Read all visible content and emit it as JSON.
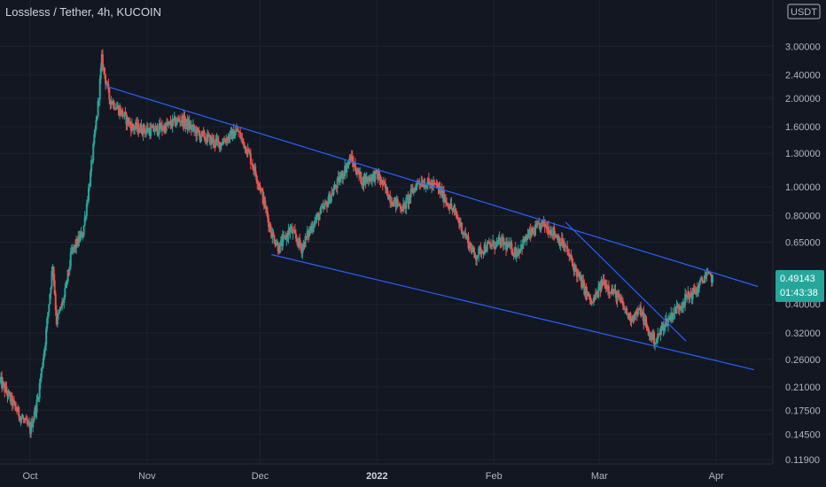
{
  "header": {
    "title": "Lossless / Tether, 4h, KUCOIN"
  },
  "chart_data": {
    "type": "candlestick",
    "symbol": "Lossless / Tether",
    "interval": "4h",
    "exchange": "KUCOIN",
    "currency": "USDT",
    "y_scale": "log",
    "y_range": [
      0.115,
      3.5
    ],
    "y_ticks": [
      "3.00000",
      "2.40000",
      "2.00000",
      "1.60000",
      "1.30000",
      "1.00000",
      "0.80000",
      "0.65000",
      "0.40000",
      "0.32000",
      "0.26000",
      "0.21000",
      "0.17500",
      "0.14500",
      "0.11900"
    ],
    "x_range": [
      "2021-09-23",
      "2022-04-16"
    ],
    "x_ticks": [
      {
        "label": "Oct",
        "date": "2021-10-01"
      },
      {
        "label": "Nov",
        "date": "2021-11-01"
      },
      {
        "label": "Dec",
        "date": "2021-12-01"
      },
      {
        "label": "2022",
        "date": "2022-01-01",
        "bold": true
      },
      {
        "label": "Feb",
        "date": "2022-02-01"
      },
      {
        "label": "Mar",
        "date": "2022-03-01"
      },
      {
        "label": "Apr",
        "date": "2022-04-01"
      }
    ],
    "current_price": "0.49143",
    "countdown": "01:43:38",
    "price_path": [
      [
        "2021-09-23",
        0.22
      ],
      [
        "2021-09-28",
        0.17
      ],
      [
        "2021-10-01",
        0.15
      ],
      [
        "2021-10-03",
        0.19
      ],
      [
        "2021-10-05",
        0.3
      ],
      [
        "2021-10-07",
        0.55
      ],
      [
        "2021-10-08",
        0.35
      ],
      [
        "2021-10-10",
        0.42
      ],
      [
        "2021-10-12",
        0.6
      ],
      [
        "2021-10-15",
        0.7
      ],
      [
        "2021-10-17",
        1.1
      ],
      [
        "2021-10-19",
        1.9
      ],
      [
        "2021-10-20",
        2.7
      ],
      [
        "2021-10-22",
        2.0
      ],
      [
        "2021-10-25",
        1.8
      ],
      [
        "2021-10-28",
        1.6
      ],
      [
        "2021-11-02",
        1.55
      ],
      [
        "2021-11-06",
        1.6
      ],
      [
        "2021-11-10",
        1.7
      ],
      [
        "2021-11-15",
        1.5
      ],
      [
        "2021-11-20",
        1.4
      ],
      [
        "2021-11-25",
        1.55
      ],
      [
        "2021-11-28",
        1.3
      ],
      [
        "2021-12-01",
        1.0
      ],
      [
        "2021-12-04",
        0.7
      ],
      [
        "2021-12-06",
        0.62
      ],
      [
        "2021-12-09",
        0.72
      ],
      [
        "2021-12-12",
        0.62
      ],
      [
        "2021-12-15",
        0.75
      ],
      [
        "2021-12-18",
        0.85
      ],
      [
        "2021-12-21",
        1.0
      ],
      [
        "2021-12-25",
        1.25
      ],
      [
        "2021-12-28",
        1.05
      ],
      [
        "2022-01-01",
        1.1
      ],
      [
        "2022-01-05",
        0.9
      ],
      [
        "2022-01-08",
        0.85
      ],
      [
        "2022-01-12",
        1.05
      ],
      [
        "2022-01-17",
        1.0
      ],
      [
        "2022-01-22",
        0.8
      ],
      [
        "2022-01-27",
        0.58
      ],
      [
        "2022-01-29",
        0.62
      ],
      [
        "2022-02-03",
        0.65
      ],
      [
        "2022-02-07",
        0.6
      ],
      [
        "2022-02-10",
        0.68
      ],
      [
        "2022-02-14",
        0.75
      ],
      [
        "2022-02-17",
        0.7
      ],
      [
        "2022-02-20",
        0.62
      ],
      [
        "2022-02-24",
        0.48
      ],
      [
        "2022-02-27",
        0.4
      ],
      [
        "2022-03-02",
        0.48
      ],
      [
        "2022-03-06",
        0.42
      ],
      [
        "2022-03-09",
        0.36
      ],
      [
        "2022-03-12",
        0.38
      ],
      [
        "2022-03-14",
        0.32
      ],
      [
        "2022-03-16",
        0.3
      ],
      [
        "2022-03-18",
        0.34
      ],
      [
        "2022-03-21",
        0.38
      ],
      [
        "2022-03-24",
        0.42
      ],
      [
        "2022-03-27",
        0.45
      ],
      [
        "2022-03-29",
        0.5
      ],
      [
        "2022-03-31",
        0.49143
      ]
    ],
    "trendlines": [
      {
        "name": "channel-upper",
        "from": [
          "2021-10-21",
          2.2
        ],
        "to": [
          "2022-04-12",
          0.46
        ]
      },
      {
        "name": "channel-lower",
        "from": [
          "2021-12-04",
          0.59
        ],
        "to": [
          "2022-04-11",
          0.24
        ]
      },
      {
        "name": "descending-line",
        "from": [
          "2022-02-20",
          0.76
        ],
        "to": [
          "2022-03-24",
          0.3
        ]
      }
    ],
    "colors": {
      "background": "#131722",
      "up": "#26a69a",
      "down": "#ef5350",
      "trendline": "#2962ff",
      "price_label": "#26a69a"
    }
  }
}
